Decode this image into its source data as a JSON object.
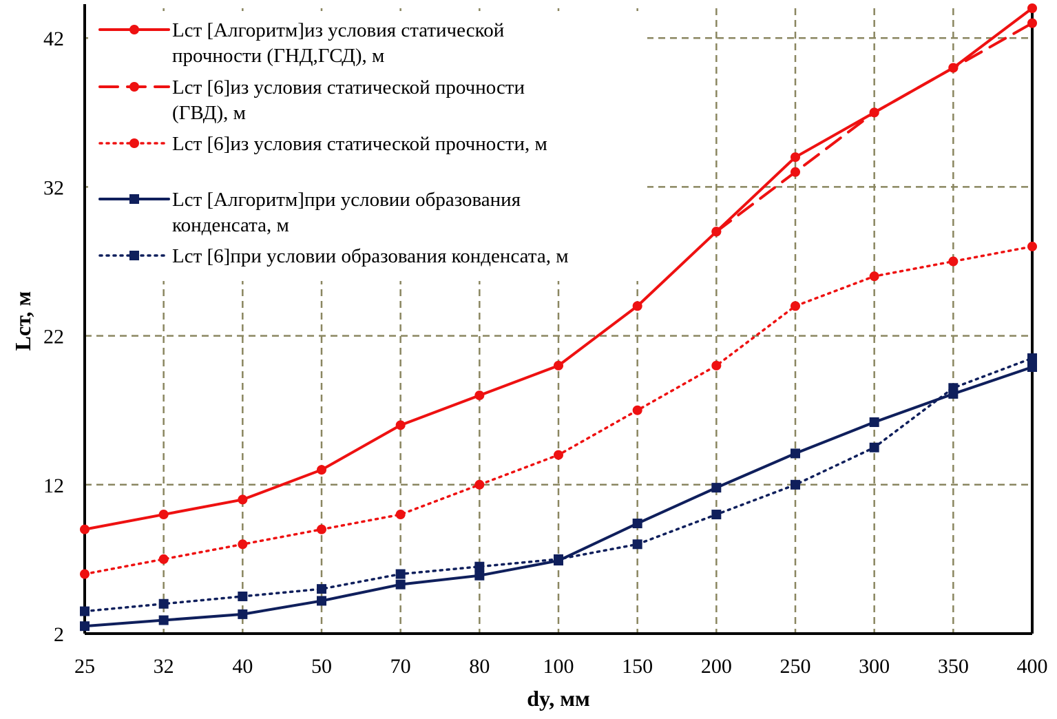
{
  "chart_data": {
    "type": "line",
    "xlabel": "dy, мм",
    "ylabel": "Lст, м",
    "categories": [
      "25",
      "32",
      "40",
      "50",
      "70",
      "80",
      "100",
      "150",
      "200",
      "250",
      "300",
      "350",
      "400"
    ],
    "ylim": [
      2,
      44
    ],
    "yticks": [
      2,
      12,
      22,
      32,
      42
    ],
    "grid": true,
    "legend_position": "top-left",
    "colors": {
      "red": "#ee1111",
      "navy": "#0f1f5c",
      "grid": "#8a8660",
      "axis": "#000000"
    },
    "series": [
      {
        "name": "Lст [Алгоритм]из условия статической прочности (ГНД,ГСД), м",
        "legend_lines": [
          "Lст [Алгоритм]из условия статической",
          "прочности (ГНД,ГСД), м"
        ],
        "color": "#ee1111",
        "dash": "solid",
        "marker": "circle",
        "values": [
          9,
          10,
          11,
          13,
          16,
          18,
          20,
          24,
          29,
          34,
          37,
          40,
          44
        ]
      },
      {
        "name": "Lст [6]из условия статической прочности (ГВД), м",
        "legend_lines": [
          "Lст [6]из условия статической прочности",
          "(ГВД), м"
        ],
        "color": "#ee1111",
        "dash": "dashed",
        "marker": "circle",
        "values": [
          null,
          null,
          null,
          null,
          null,
          null,
          null,
          null,
          29,
          33,
          37,
          40,
          43
        ]
      },
      {
        "name": "Lст [6]из условия статической прочности, м",
        "legend_lines": [
          "Lст [6]из условия статической прочности, м"
        ],
        "color": "#ee1111",
        "dash": "dotted",
        "marker": "circle",
        "values": [
          6,
          7,
          8,
          9,
          10,
          12,
          14,
          17,
          20,
          24,
          26,
          27,
          28
        ]
      },
      {
        "name": "Lст [Алгоритм]при условии образования конденсата, м",
        "legend_lines": [
          "Lст [Алгоритм]при условии образования",
          "конденсата, м"
        ],
        "color": "#0f1f5c",
        "dash": "solid",
        "marker": "square",
        "values": [
          2.5,
          2.9,
          3.3,
          4.2,
          5.3,
          5.9,
          6.9,
          9.4,
          11.8,
          14.1,
          16.2,
          18.1,
          19.9
        ]
      },
      {
        "name": "Lст [6]при условии образования конденсата, м",
        "legend_lines": [
          "Lст [6]при условии образования конденсата, м"
        ],
        "color": "#0f1f5c",
        "dash": "dotted",
        "marker": "square",
        "values": [
          3.5,
          4,
          4.5,
          5,
          6,
          6.5,
          7,
          8,
          10,
          12,
          14.5,
          18.5,
          20.5
        ]
      }
    ]
  }
}
